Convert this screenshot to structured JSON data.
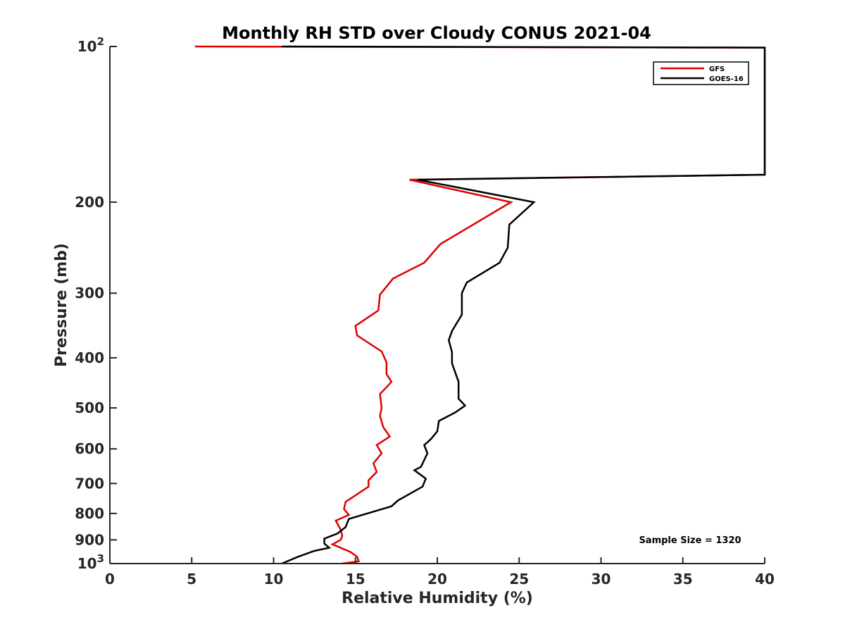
{
  "chart_data": {
    "type": "line",
    "title": "Monthly RH STD over Cloudy CONUS  2021-04",
    "xlabel": "Relative Humidity (%)",
    "ylabel": "Pressure (mb)",
    "xlim": [
      0,
      40
    ],
    "ylim": [
      100,
      1000
    ],
    "y_scale": "log",
    "y_reversed": true,
    "x_ticks": [
      0,
      5,
      10,
      15,
      20,
      25,
      30,
      35,
      40
    ],
    "x_tick_labels": [
      "0",
      "5",
      "10",
      "15",
      "20",
      "25",
      "30",
      "35",
      "40"
    ],
    "y_ticks": [
      100,
      200,
      300,
      400,
      500,
      600,
      700,
      800,
      900,
      1000
    ],
    "y_tick_labels": [
      "10^2",
      "200",
      "300",
      "400",
      "500",
      "600",
      "700",
      "800",
      "900",
      "10^3"
    ],
    "grid": false,
    "legend_placement": "top-right",
    "annotation": "Sample Size = 1320",
    "series": [
      {
        "name": "GFS",
        "color": "#e00000",
        "points": [
          [
            5.2,
            100
          ],
          [
            40,
            100.5
          ],
          [
            40,
            177
          ],
          [
            18.3,
            181
          ],
          [
            24.5,
            200
          ],
          [
            20.2,
            241
          ],
          [
            19.2,
            262
          ],
          [
            17.3,
            281
          ],
          [
            16.5,
            302
          ],
          [
            16.4,
            324
          ],
          [
            15.0,
            347
          ],
          [
            15.1,
            362
          ],
          [
            16.6,
            389
          ],
          [
            16.9,
            408
          ],
          [
            16.9,
            430
          ],
          [
            17.2,
            445
          ],
          [
            16.9,
            456
          ],
          [
            16.5,
            470
          ],
          [
            16.6,
            500
          ],
          [
            16.5,
            518
          ],
          [
            16.7,
            545
          ],
          [
            17.1,
            568
          ],
          [
            16.3,
            590
          ],
          [
            16.6,
            612
          ],
          [
            16.1,
            640
          ],
          [
            16.3,
            665
          ],
          [
            15.8,
            690
          ],
          [
            15.8,
            710
          ],
          [
            14.4,
            760
          ],
          [
            14.3,
            785
          ],
          [
            14.6,
            805
          ],
          [
            13.8,
            826
          ],
          [
            14.1,
            860
          ],
          [
            14.2,
            884
          ],
          [
            14.1,
            900
          ],
          [
            13.6,
            918
          ],
          [
            14.7,
            950
          ],
          [
            15.1,
            970
          ],
          [
            15.2,
            990
          ],
          [
            14.2,
            1000
          ]
        ]
      },
      {
        "name": "GOES-16",
        "color": "#000000",
        "points": [
          [
            10.5,
            100
          ],
          [
            40,
            100.5
          ],
          [
            40,
            177
          ],
          [
            18.8,
            181
          ],
          [
            25.9,
            200
          ],
          [
            24.4,
            221
          ],
          [
            24.3,
            245
          ],
          [
            23.8,
            262
          ],
          [
            21.8,
            286
          ],
          [
            21.5,
            300
          ],
          [
            21.5,
            330
          ],
          [
            20.9,
            355
          ],
          [
            20.7,
            370
          ],
          [
            20.9,
            390
          ],
          [
            20.9,
            410
          ],
          [
            21.3,
            445
          ],
          [
            21.3,
            480
          ],
          [
            21.7,
            495
          ],
          [
            21.1,
            510
          ],
          [
            20.1,
            530
          ],
          [
            20.0,
            555
          ],
          [
            19.6,
            575
          ],
          [
            19.2,
            590
          ],
          [
            19.4,
            612
          ],
          [
            19.0,
            650
          ],
          [
            18.6,
            660
          ],
          [
            19.3,
            685
          ],
          [
            19.1,
            710
          ],
          [
            17.6,
            755
          ],
          [
            17.2,
            775
          ],
          [
            16.3,
            790
          ],
          [
            14.6,
            820
          ],
          [
            14.4,
            850
          ],
          [
            13.9,
            875
          ],
          [
            13.1,
            895
          ],
          [
            13.1,
            915
          ],
          [
            13.4,
            932
          ],
          [
            12.5,
            945
          ],
          [
            11.5,
            970
          ],
          [
            10.5,
            1000
          ]
        ]
      }
    ]
  }
}
